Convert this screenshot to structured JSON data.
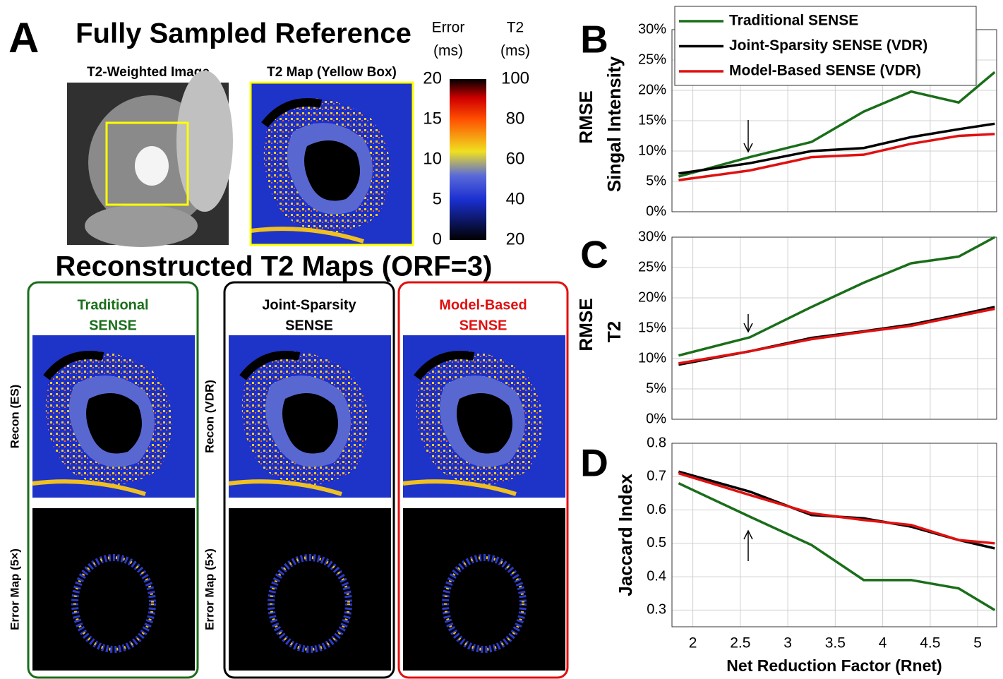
{
  "panel_a": {
    "letter": "A",
    "title": "Fully Sampled Reference",
    "image1_label": "T2-Weighted Image",
    "image2_label": "T2 Map (Yellow Box)",
    "colorbar": {
      "error_label": [
        "Error",
        "(ms)"
      ],
      "t2_label": [
        "T2",
        "(ms)"
      ],
      "error_ticks": [
        0,
        5,
        10,
        15,
        20
      ],
      "t2_ticks": [
        20,
        40,
        60,
        80,
        100
      ]
    },
    "recon_title": "Reconstructed T2 Maps (ORF=3)",
    "columns": [
      {
        "title": [
          "Traditional",
          "SENSE"
        ],
        "color": "#1a6e1a"
      },
      {
        "title": [
          "Joint-Sparsity",
          "SENSE"
        ],
        "color": "#000000"
      },
      {
        "title": [
          "Model-Based",
          "SENSE"
        ],
        "color": "#e01010"
      }
    ],
    "row_labels": [
      [
        "Recon (ES)",
        "Error Map (5×)"
      ],
      [
        "Recon (VDR)",
        "Error Map (5×)"
      ]
    ]
  },
  "chart_data": [
    {
      "type": "line",
      "letter": "B",
      "ylabel": [
        "RMSE",
        "Singal Intensity"
      ],
      "x": [
        1.85,
        2.6,
        3.25,
        3.8,
        4.3,
        4.8,
        5.18
      ],
      "xlim": [
        1.78,
        5.2
      ],
      "xticks": [
        2,
        2.5,
        3,
        3.5,
        4,
        4.5,
        5
      ],
      "ylim": [
        0,
        30
      ],
      "yticks": [
        {
          "value": 0,
          "label": "0%"
        },
        {
          "value": 5,
          "label": "5%"
        },
        {
          "value": 10,
          "label": "10%"
        },
        {
          "value": 15,
          "label": "15%"
        },
        {
          "value": 20,
          "label": "20%"
        },
        {
          "value": 25,
          "label": "25%"
        },
        {
          "value": 30,
          "label": "30%"
        }
      ],
      "grid": true,
      "legend": "top",
      "series": [
        {
          "name": "Traditional SENSE",
          "color": "#1a6e1a",
          "values": [
            5.8,
            9,
            11.5,
            16.5,
            19.8,
            18,
            23
          ]
        },
        {
          "name": "Joint-Sparsity SENSE (VDR)",
          "color": "#000000",
          "values": [
            6.3,
            8,
            10,
            10.5,
            12.3,
            13.6,
            14.5
          ]
        },
        {
          "name": "Model-Based SENSE (VDR)",
          "color": "#e01010",
          "values": [
            5.2,
            6.8,
            9,
            9.4,
            11.2,
            12.5,
            12.8
          ]
        }
      ]
    },
    {
      "type": "line",
      "letter": "C",
      "ylabel": [
        "RMSE",
        "T2"
      ],
      "x": [
        1.85,
        2.6,
        3.25,
        3.8,
        4.3,
        4.8,
        5.18
      ],
      "xlim": [
        1.78,
        5.2
      ],
      "xticks": [
        2,
        2.5,
        3,
        3.5,
        4,
        4.5,
        5
      ],
      "ylim": [
        0,
        30
      ],
      "yticks": [
        {
          "value": 0,
          "label": "0%"
        },
        {
          "value": 5,
          "label": "5%"
        },
        {
          "value": 10,
          "label": "10%"
        },
        {
          "value": 15,
          "label": "15%"
        },
        {
          "value": 20,
          "label": "20%"
        },
        {
          "value": 25,
          "label": "25%"
        },
        {
          "value": 30,
          "label": "30%"
        }
      ],
      "grid": true,
      "series": [
        {
          "color": "#1a6e1a",
          "values": [
            10.5,
            13.5,
            18.5,
            22.5,
            25.7,
            26.8,
            30
          ]
        },
        {
          "color": "#000000",
          "values": [
            9,
            11.2,
            13.4,
            14.5,
            15.6,
            17.2,
            18.5
          ]
        },
        {
          "color": "#e01010",
          "values": [
            9.2,
            11.2,
            13.2,
            14.4,
            15.4,
            17,
            18.2
          ]
        }
      ]
    },
    {
      "type": "line",
      "letter": "D",
      "ylabel": [
        "Jaccard Index"
      ],
      "xlabel": "Net Reduction Factor (Rnet)",
      "x": [
        1.85,
        2.6,
        3.25,
        3.8,
        4.3,
        4.8,
        5.18
      ],
      "xlim": [
        1.78,
        5.2
      ],
      "xticks": [
        2,
        2.5,
        3,
        3.5,
        4,
        4.5,
        5
      ],
      "ylim": [
        0.25,
        0.8
      ],
      "yticks": [
        0.3,
        0.4,
        0.5,
        0.6,
        0.7,
        0.8
      ],
      "grid": true,
      "series": [
        {
          "color": "#1a6e1a",
          "values": [
            0.68,
            0.58,
            0.495,
            0.39,
            0.39,
            0.365,
            0.3
          ]
        },
        {
          "color": "#000000",
          "values": [
            0.715,
            0.655,
            0.585,
            0.575,
            0.55,
            0.51,
            0.485
          ]
        },
        {
          "color": "#e01010",
          "values": [
            0.71,
            0.645,
            0.59,
            0.57,
            0.555,
            0.51,
            0.5
          ]
        }
      ]
    }
  ]
}
